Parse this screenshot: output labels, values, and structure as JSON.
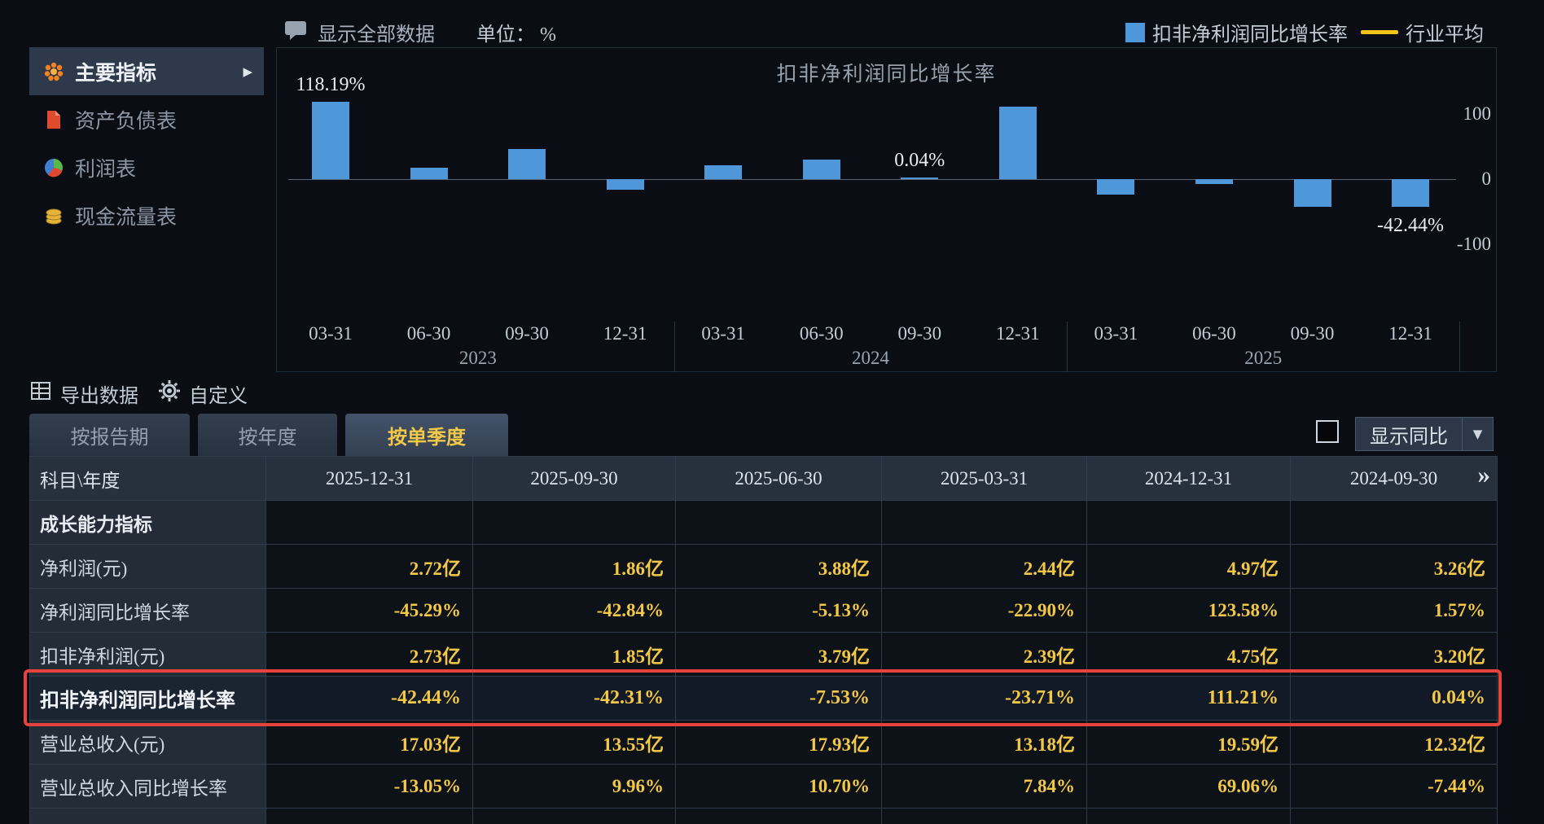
{
  "topbar": {
    "show_all_label": "显示全部数据",
    "unit_label": "单位： %",
    "legend": [
      {
        "label": "扣非净利润同比增长率",
        "color": "#4e97d9",
        "type": "square"
      },
      {
        "label": "行业平均",
        "color": "#f0c419",
        "type": "line"
      }
    ]
  },
  "sidebar": {
    "items": [
      {
        "label": "主要指标",
        "icon": "flower-icon",
        "active": true
      },
      {
        "label": "资产负债表",
        "icon": "document-icon",
        "active": false
      },
      {
        "label": "利润表",
        "icon": "pie-icon",
        "active": false
      },
      {
        "label": "现金流量表",
        "icon": "coins-icon",
        "active": false
      }
    ]
  },
  "chart_data": {
    "type": "bar",
    "title": "扣非净利润同比增长率",
    "series_name": "扣非净利润同比增长率",
    "categories": [
      "03-31",
      "06-30",
      "09-30",
      "12-31",
      "03-31",
      "06-30",
      "09-30",
      "12-31",
      "03-31",
      "06-30",
      "09-30",
      "12-31"
    ],
    "year_groups": [
      "2023",
      "2024",
      "2025"
    ],
    "values": [
      118.19,
      17,
      46,
      -16,
      21,
      30,
      0.04,
      111.21,
      -23.71,
      -7.53,
      -42.31,
      -42.44
    ],
    "labeled_points": [
      {
        "index": 0,
        "label": "118.19%"
      },
      {
        "index": 6,
        "label": "0.04%"
      },
      {
        "index": 11,
        "label": "-42.44%"
      }
    ],
    "y_ticks": [
      100,
      0,
      -100
    ],
    "ylim": [
      -130,
      200
    ],
    "bar_color": "#4e97d9",
    "grid": false,
    "legend_position": "top-right",
    "industry_avg_label": "行业平均"
  },
  "toolbar": {
    "export_label": "导出数据",
    "customize_label": "自定义"
  },
  "tabs": [
    {
      "label": "按报告期",
      "active": false
    },
    {
      "label": "按年度",
      "active": false
    },
    {
      "label": "按单季度",
      "active": true
    }
  ],
  "yoy": {
    "label": "显示同比",
    "checked": false
  },
  "table": {
    "more_icon": "»",
    "header": [
      "科目\\年度",
      "2025-12-31",
      "2025-09-30",
      "2025-06-30",
      "2025-03-31",
      "2024-12-31",
      "2024-09-30"
    ],
    "rows": [
      {
        "label": "成长能力指标",
        "section": true,
        "values": [
          "",
          "",
          "",
          "",
          "",
          ""
        ]
      },
      {
        "label": "净利润(元)",
        "values": [
          "2.72亿",
          "1.86亿",
          "3.88亿",
          "2.44亿",
          "4.97亿",
          "3.26亿"
        ]
      },
      {
        "label": "净利润同比增长率",
        "values": [
          "-45.29%",
          "-42.84%",
          "-5.13%",
          "-22.90%",
          "123.58%",
          "1.57%"
        ]
      },
      {
        "label": "扣非净利润(元)",
        "values": [
          "2.73亿",
          "1.85亿",
          "3.79亿",
          "2.39亿",
          "4.75亿",
          "3.20亿"
        ]
      },
      {
        "label": "扣非净利润同比增长率",
        "highlighted": true,
        "values": [
          "-42.44%",
          "-42.31%",
          "-7.53%",
          "-23.71%",
          "111.21%",
          "0.04%"
        ]
      },
      {
        "label": "营业总收入(元)",
        "values": [
          "17.03亿",
          "13.55亿",
          "17.93亿",
          "13.18亿",
          "19.59亿",
          "12.32亿"
        ]
      },
      {
        "label": "营业总收入同比增长率",
        "values": [
          "-13.05%",
          "9.96%",
          "10.70%",
          "7.84%",
          "69.06%",
          "-7.44%"
        ]
      },
      {
        "label": "",
        "partial": true,
        "values": [
          "",
          "",
          "",
          "",
          "",
          ""
        ]
      }
    ]
  }
}
